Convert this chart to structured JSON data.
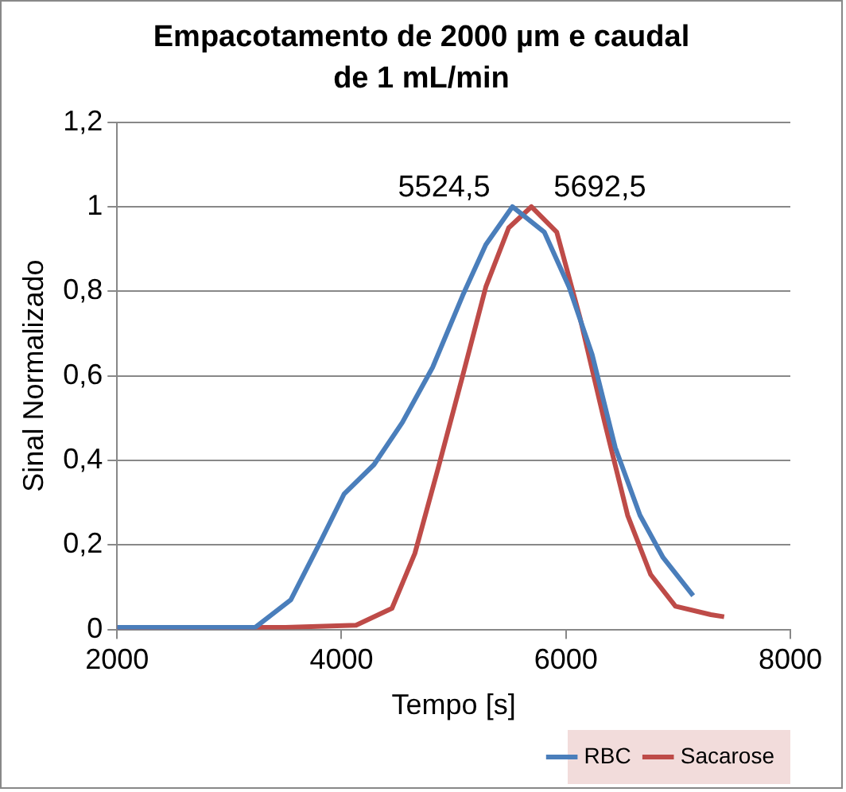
{
  "chart_data": {
    "type": "line",
    "title": "Empacotamento de 2000 µm e caudal de 1 mL/min",
    "xlabel": "Tempo [s]",
    "ylabel": "Sinal Normalizado",
    "series": [
      {
        "name": "RBC",
        "color": "#4a7ebb",
        "x": [
          2000,
          3000,
          3232,
          3548,
          3817,
          4022,
          4290,
          4543,
          4812,
          5080,
          5286,
          5523,
          5807,
          6028,
          6234,
          6440,
          6660,
          6866,
          7134
        ],
        "values": [
          0.005,
          0.005,
          0.005,
          0.07,
          0.21,
          0.32,
          0.39,
          0.49,
          0.62,
          0.79,
          0.91,
          1.0,
          0.94,
          0.81,
          0.65,
          0.43,
          0.27,
          0.17,
          0.08
        ]
      },
      {
        "name": "Sacarose",
        "color": "#be4b48",
        "x": [
          2000,
          3500,
          4130,
          4450,
          4654,
          4860,
          5080,
          5286,
          5490,
          5692,
          5918,
          6123,
          6345,
          6550,
          6755,
          6976,
          7292,
          7410
        ],
        "values": [
          0.005,
          0.005,
          0.01,
          0.05,
          0.18,
          0.38,
          0.6,
          0.81,
          0.95,
          1.0,
          0.94,
          0.74,
          0.49,
          0.27,
          0.13,
          0.055,
          0.035,
          0.03
        ]
      }
    ],
    "xlim": [
      2000,
      8000
    ],
    "xticks": [
      2000,
      4000,
      6000,
      8000
    ],
    "ylim": [
      0,
      1.2
    ],
    "yticks": [
      0,
      {
        "value": 0.2,
        "label": "0,2"
      },
      {
        "value": 0.4,
        "label": "0,4"
      },
      {
        "value": 0.6,
        "label": "0,6"
      },
      {
        "value": 0.8,
        "label": "0,8"
      },
      1,
      {
        "value": 1.2,
        "label": "1,2"
      }
    ],
    "grid": "y",
    "legend": "bottom right",
    "marker": "none",
    "line_style": "solid",
    "annotations": [
      {
        "text": "5524,5",
        "x": 5524.5,
        "y": 1
      },
      {
        "text": "5692,5",
        "x": 5692.5,
        "y": 1
      }
    ]
  }
}
